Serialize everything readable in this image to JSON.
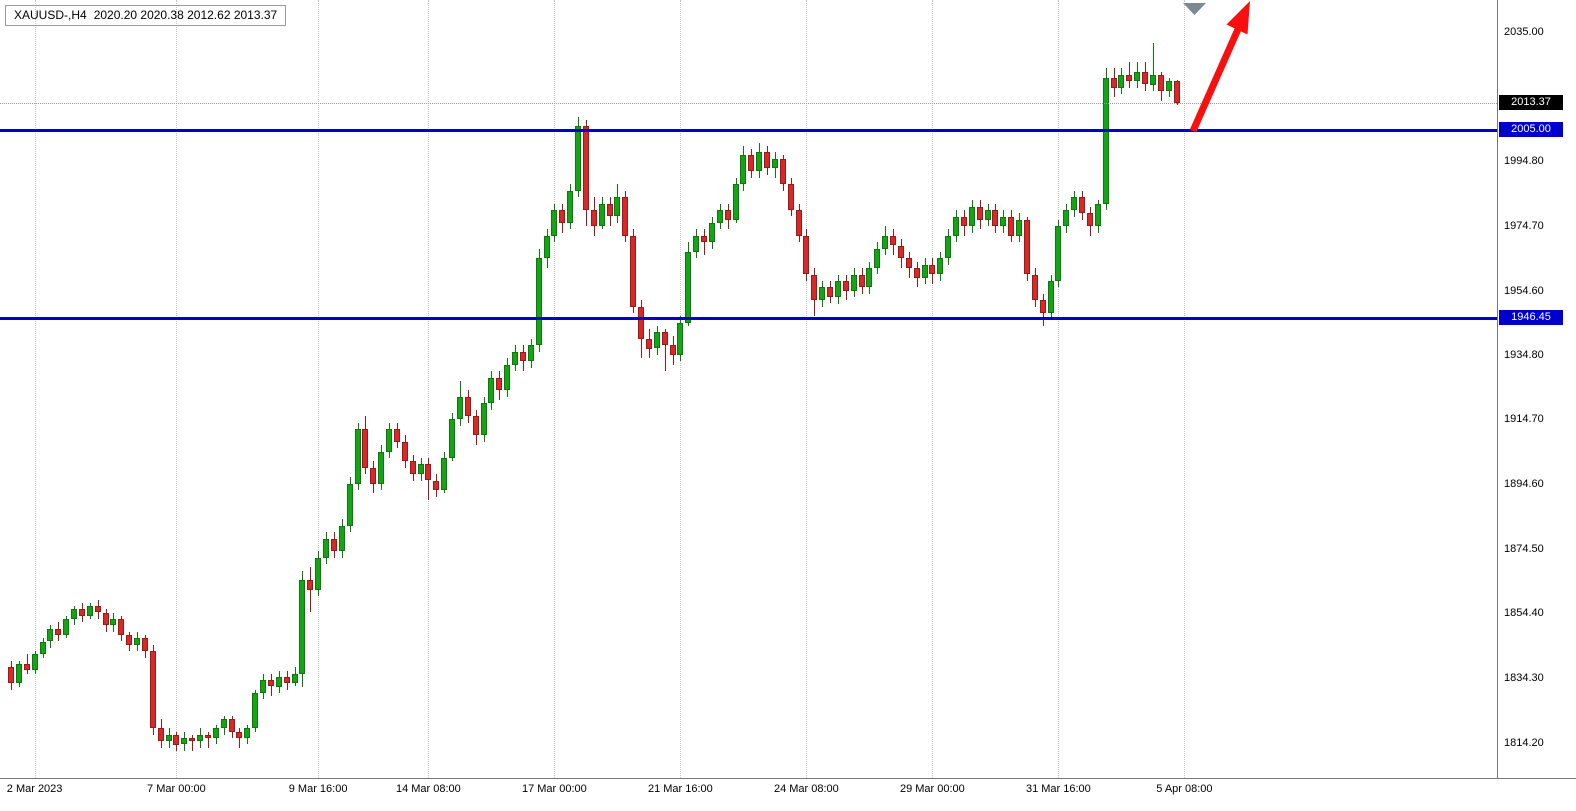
{
  "window": {
    "title_symbol": "XAUUSD-,H4",
    "ohlc_text": "2020.20 2020.38 2012.62 2013.37"
  },
  "chart_data": {
    "type": "candlestick",
    "symbol": "XAUUSD",
    "timeframe": "H4",
    "current_ohlc": {
      "open": 2020.2,
      "high": 2020.38,
      "low": 2012.62,
      "close": 2013.37
    },
    "ylim": [
      1803.6,
      2045.25
    ],
    "grid": true,
    "legend_position": "none",
    "y_ticks": [
      "2035.00",
      "1994.80",
      "1974.70",
      "1954.60",
      "1934.80",
      "1914.70",
      "1894.60",
      "1874.50",
      "1854.40",
      "1834.30",
      "1814.20"
    ],
    "x_labels": [
      {
        "i": 3,
        "label": "2 Mar 2023"
      },
      {
        "i": 21,
        "label": "7 Mar 00:00"
      },
      {
        "i": 39,
        "label": "9 Mar 16:00"
      },
      {
        "i": 53,
        "label": "14 Mar 08:00"
      },
      {
        "i": 69,
        "label": "17 Mar 00:00"
      },
      {
        "i": 85,
        "label": "21 Mar 16:00"
      },
      {
        "i": 101,
        "label": "24 Mar 08:00"
      },
      {
        "i": 117,
        "label": "29 Mar 00:00"
      },
      {
        "i": 133,
        "label": "31 Mar 16:00"
      },
      {
        "i": 149,
        "label": "5 Apr 08:00"
      }
    ],
    "price_lines": [
      {
        "price": 2005.0,
        "label": "2005.00"
      },
      {
        "price": 1946.45,
        "label": "1946.45"
      }
    ],
    "current_price": {
      "price": 2013.37,
      "label": "2013.37"
    },
    "candles": [
      [
        1838,
        1840,
        1831,
        1833
      ],
      [
        1833,
        1840,
        1832,
        1839
      ],
      [
        1839,
        1842,
        1836,
        1837
      ],
      [
        1837,
        1843,
        1836,
        1842
      ],
      [
        1842,
        1847,
        1841,
        1846
      ],
      [
        1846,
        1851,
        1844,
        1850
      ],
      [
        1850,
        1852,
        1846,
        1848
      ],
      [
        1848,
        1854,
        1847,
        1853
      ],
      [
        1853,
        1857,
        1851,
        1856
      ],
      [
        1856,
        1858,
        1852,
        1854
      ],
      [
        1854,
        1858,
        1853,
        1857
      ],
      [
        1857,
        1859,
        1853,
        1855
      ],
      [
        1855,
        1856,
        1849,
        1851
      ],
      [
        1851,
        1855,
        1849,
        1853
      ],
      [
        1853,
        1854,
        1846,
        1848
      ],
      [
        1848,
        1849,
        1843,
        1845
      ],
      [
        1845,
        1849,
        1843,
        1847
      ],
      [
        1847,
        1848,
        1841,
        1843
      ],
      [
        1843,
        1845,
        1817,
        1819
      ],
      [
        1819,
        1822,
        1813,
        1815
      ],
      [
        1815,
        1819,
        1813,
        1817
      ],
      [
        1817,
        1818,
        1812,
        1814
      ],
      [
        1814,
        1818,
        1812,
        1816
      ],
      [
        1816,
        1817,
        1812,
        1815
      ],
      [
        1815,
        1819,
        1813,
        1817
      ],
      [
        1817,
        1818,
        1813,
        1816
      ],
      [
        1816,
        1820,
        1814,
        1819
      ],
      [
        1819,
        1823,
        1817,
        1822
      ],
      [
        1822,
        1823,
        1816,
        1818
      ],
      [
        1818,
        1819,
        1813,
        1816
      ],
      [
        1816,
        1820,
        1814,
        1819
      ],
      [
        1819,
        1831,
        1818,
        1830
      ],
      [
        1830,
        1836,
        1828,
        1834
      ],
      [
        1834,
        1836,
        1829,
        1832
      ],
      [
        1832,
        1837,
        1830,
        1835
      ],
      [
        1835,
        1837,
        1831,
        1833
      ],
      [
        1833,
        1838,
        1832,
        1836
      ],
      [
        1836,
        1868,
        1832,
        1865
      ],
      [
        1865,
        1869,
        1855,
        1862
      ],
      [
        1862,
        1874,
        1860,
        1872
      ],
      [
        1872,
        1880,
        1870,
        1878
      ],
      [
        1878,
        1880,
        1872,
        1874
      ],
      [
        1874,
        1884,
        1872,
        1882
      ],
      [
        1882,
        1897,
        1880,
        1895
      ],
      [
        1895,
        1914,
        1893,
        1912
      ],
      [
        1912,
        1916,
        1898,
        1900
      ],
      [
        1900,
        1902,
        1892,
        1895
      ],
      [
        1895,
        1907,
        1893,
        1905
      ],
      [
        1905,
        1914,
        1903,
        1912
      ],
      [
        1912,
        1914,
        1906,
        1908
      ],
      [
        1908,
        1910,
        1900,
        1902
      ],
      [
        1902,
        1904,
        1896,
        1898
      ],
      [
        1898,
        1903,
        1896,
        1901
      ],
      [
        1901,
        1903,
        1890,
        1896
      ],
      [
        1896,
        1898,
        1891,
        1893
      ],
      [
        1893,
        1905,
        1892,
        1903
      ],
      [
        1903,
        1917,
        1902,
        1915
      ],
      [
        1915,
        1927,
        1913,
        1922
      ],
      [
        1922,
        1924,
        1914,
        1916
      ],
      [
        1916,
        1918,
        1907,
        1910
      ],
      [
        1910,
        1922,
        1908,
        1920
      ],
      [
        1920,
        1930,
        1918,
        1928
      ],
      [
        1928,
        1930,
        1921,
        1924
      ],
      [
        1924,
        1934,
        1922,
        1932
      ],
      [
        1932,
        1938,
        1930,
        1936
      ],
      [
        1936,
        1938,
        1930,
        1933
      ],
      [
        1933,
        1940,
        1931,
        1938
      ],
      [
        1938,
        1968,
        1936,
        1965
      ],
      [
        1965,
        1974,
        1962,
        1972
      ],
      [
        1972,
        1982,
        1970,
        1980
      ],
      [
        1980,
        1982,
        1973,
        1976
      ],
      [
        1976,
        1988,
        1974,
        1986
      ],
      [
        1986,
        2009,
        1984,
        2006
      ],
      [
        2006,
        2008,
        1975,
        1980
      ],
      [
        1980,
        1984,
        1972,
        1975
      ],
      [
        1975,
        1984,
        1974,
        1982
      ],
      [
        1982,
        1984,
        1975,
        1978
      ],
      [
        1978,
        1988,
        1976,
        1984
      ],
      [
        1984,
        1986,
        1970,
        1972
      ],
      [
        1972,
        1974,
        1948,
        1950
      ],
      [
        1950,
        1952,
        1934,
        1940
      ],
      [
        1940,
        1943,
        1934,
        1937
      ],
      [
        1937,
        1944,
        1935,
        1942
      ],
      [
        1942,
        1943,
        1930,
        1938
      ],
      [
        1938,
        1941,
        1932,
        1935
      ],
      [
        1935,
        1947,
        1933,
        1945
      ],
      [
        1945,
        1970,
        1944,
        1967
      ],
      [
        1967,
        1974,
        1965,
        1972
      ],
      [
        1972,
        1974,
        1966,
        1970
      ],
      [
        1970,
        1978,
        1968,
        1976
      ],
      [
        1976,
        1982,
        1974,
        1980
      ],
      [
        1980,
        1982,
        1974,
        1977
      ],
      [
        1977,
        1990,
        1976,
        1988
      ],
      [
        1988,
        2000,
        1986,
        1997
      ],
      [
        1997,
        1999,
        1990,
        1992
      ],
      [
        1992,
        2001,
        1990,
        1998
      ],
      [
        1998,
        2000,
        1991,
        1993
      ],
      [
        1993,
        1998,
        1990,
        1996
      ],
      [
        1996,
        1997,
        1986,
        1988
      ],
      [
        1988,
        1990,
        1978,
        1980
      ],
      [
        1980,
        1982,
        1970,
        1972
      ],
      [
        1972,
        1974,
        1958,
        1960
      ],
      [
        1960,
        1962,
        1947,
        1952
      ],
      [
        1952,
        1958,
        1950,
        1956
      ],
      [
        1956,
        1958,
        1951,
        1953
      ],
      [
        1953,
        1960,
        1951,
        1958
      ],
      [
        1958,
        1960,
        1952,
        1955
      ],
      [
        1955,
        1962,
        1953,
        1960
      ],
      [
        1960,
        1962,
        1954,
        1956
      ],
      [
        1956,
        1964,
        1954,
        1962
      ],
      [
        1962,
        1970,
        1960,
        1968
      ],
      [
        1968,
        1975,
        1966,
        1972
      ],
      [
        1972,
        1974,
        1966,
        1969
      ],
      [
        1969,
        1971,
        1962,
        1965
      ],
      [
        1965,
        1967,
        1959,
        1962
      ],
      [
        1962,
        1964,
        1956,
        1959
      ],
      [
        1959,
        1965,
        1957,
        1963
      ],
      [
        1963,
        1965,
        1957,
        1960
      ],
      [
        1960,
        1967,
        1958,
        1965
      ],
      [
        1965,
        1974,
        1963,
        1972
      ],
      [
        1972,
        1980,
        1970,
        1978
      ],
      [
        1978,
        1980,
        1972,
        1975
      ],
      [
        1975,
        1983,
        1973,
        1981
      ],
      [
        1981,
        1983,
        1974,
        1977
      ],
      [
        1977,
        1982,
        1975,
        1980
      ],
      [
        1980,
        1982,
        1973,
        1975
      ],
      [
        1975,
        1980,
        1973,
        1978
      ],
      [
        1978,
        1980,
        1970,
        1972
      ],
      [
        1972,
        1979,
        1970,
        1977
      ],
      [
        1977,
        1978,
        1958,
        1960
      ],
      [
        1960,
        1962,
        1950,
        1952
      ],
      [
        1952,
        1954,
        1944,
        1948
      ],
      [
        1948,
        1960,
        1946,
        1958
      ],
      [
        1958,
        1977,
        1956,
        1975
      ],
      [
        1975,
        1982,
        1973,
        1980
      ],
      [
        1980,
        1986,
        1978,
        1984
      ],
      [
        1984,
        1986,
        1977,
        1979
      ],
      [
        1979,
        1981,
        1972,
        1975
      ],
      [
        1975,
        1983,
        1973,
        1982
      ],
      [
        1982,
        2024,
        1980,
        2021
      ],
      [
        2021,
        2024,
        2015,
        2018
      ],
      [
        2018,
        2024,
        2016,
        2022
      ],
      [
        2022,
        2026,
        2018,
        2020
      ],
      [
        2020,
        2026,
        2018,
        2023
      ],
      [
        2023,
        2026,
        2017,
        2019
      ],
      [
        2019,
        2032,
        2017,
        2022
      ],
      [
        2022,
        2023,
        2014,
        2017
      ],
      [
        2017,
        2021,
        2015,
        2020.2
      ],
      [
        2020.2,
        2020.38,
        2012.62,
        2013.37
      ]
    ]
  },
  "colors": {
    "bull": "#17a317",
    "bull_border": "#0b7a0b",
    "bear": "#d42a2a",
    "bear_border": "#9e1818",
    "line_blue": "#0000cd",
    "tag_black": "#000000",
    "arrow_red": "#f80f0f",
    "marker_gray": "#7e8892",
    "grid": "#c6c6c6"
  },
  "annotations": {
    "arrow": "red-up-arrow",
    "marker": "gray-triangle-marker"
  }
}
